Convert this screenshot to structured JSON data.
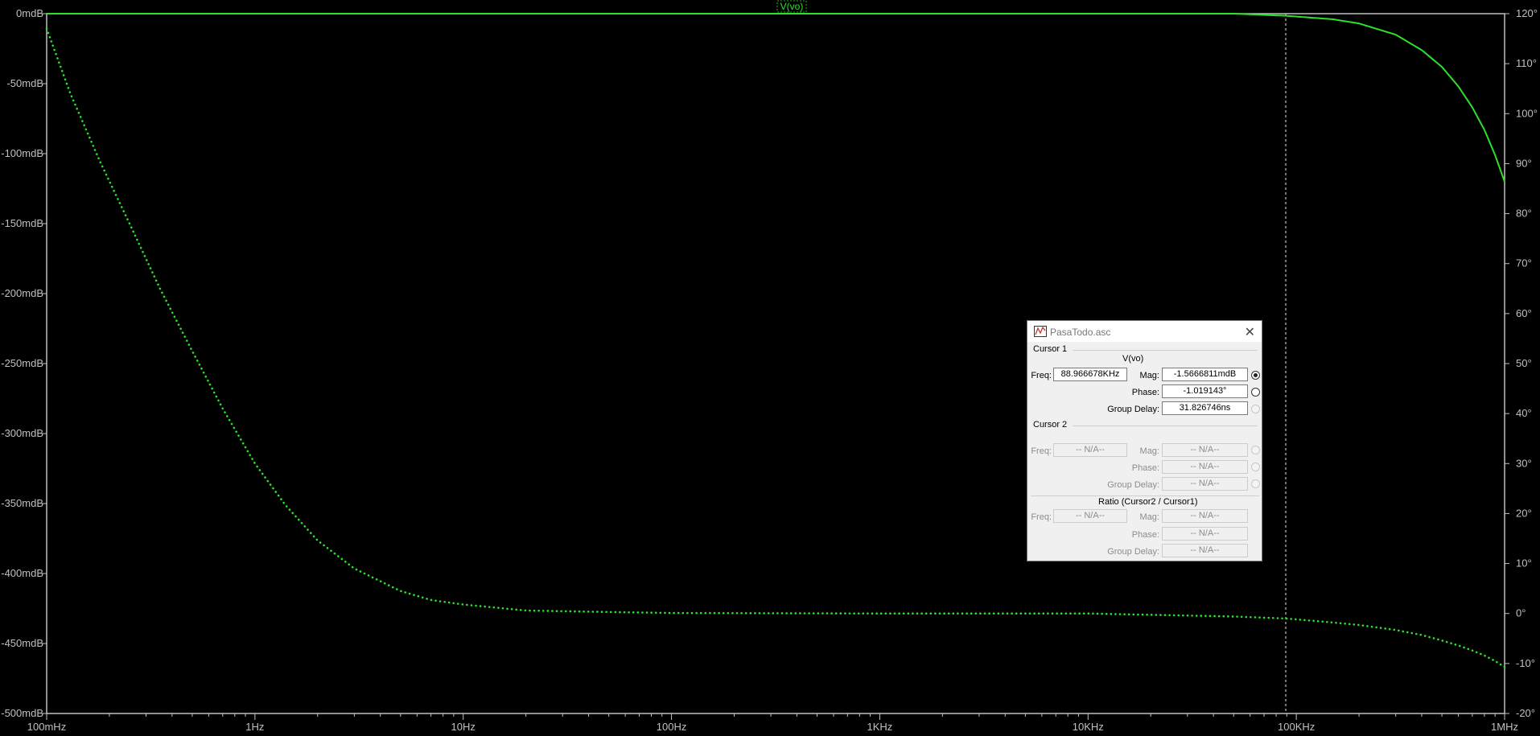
{
  "chart_data": {
    "type": "line",
    "trace_label": "V(vo)",
    "x_scale": "log",
    "x_range": [
      0.1,
      1000000
    ],
    "x_ticks": [
      {
        "value": 0.1,
        "label": "100mHz"
      },
      {
        "value": 1,
        "label": "1Hz"
      },
      {
        "value": 10,
        "label": "10Hz"
      },
      {
        "value": 100,
        "label": "100Hz"
      },
      {
        "value": 1000,
        "label": "1KHz"
      },
      {
        "value": 10000,
        "label": "10KHz"
      },
      {
        "value": 100000,
        "label": "100KHz"
      },
      {
        "value": 1000000,
        "label": "1MHz"
      }
    ],
    "y_left_range_mdB": [
      -500,
      0
    ],
    "y_left_ticks": [
      {
        "value": 0,
        "label": "0mdB"
      },
      {
        "value": -50,
        "label": "-50mdB"
      },
      {
        "value": -100,
        "label": "-100mdB"
      },
      {
        "value": -150,
        "label": "-150mdB"
      },
      {
        "value": -200,
        "label": "-200mdB"
      },
      {
        "value": -250,
        "label": "-250mdB"
      },
      {
        "value": -300,
        "label": "-300mdB"
      },
      {
        "value": -350,
        "label": "-350mdB"
      },
      {
        "value": -400,
        "label": "-400mdB"
      },
      {
        "value": -450,
        "label": "-450mdB"
      },
      {
        "value": -500,
        "label": "-500mdB"
      }
    ],
    "y_right_range_deg": [
      -20,
      120
    ],
    "y_right_ticks": [
      {
        "value": 120,
        "label": "120°"
      },
      {
        "value": 110,
        "label": "110°"
      },
      {
        "value": 100,
        "label": "100°"
      },
      {
        "value": 90,
        "label": "90°"
      },
      {
        "value": 80,
        "label": "80°"
      },
      {
        "value": 70,
        "label": "70°"
      },
      {
        "value": 60,
        "label": "60°"
      },
      {
        "value": 50,
        "label": "50°"
      },
      {
        "value": 40,
        "label": "40°"
      },
      {
        "value": 30,
        "label": "30°"
      },
      {
        "value": 20,
        "label": "20°"
      },
      {
        "value": 10,
        "label": "10°"
      },
      {
        "value": 0,
        "label": "0°"
      },
      {
        "value": -10,
        "label": "-10°"
      },
      {
        "value": -20,
        "label": "-20°"
      }
    ],
    "series": [
      {
        "kind": "magnitude",
        "axis": "left",
        "style": "solid",
        "color": "#2be12b",
        "unit": "mdB",
        "x": [
          0.1,
          1,
          10,
          100,
          1000,
          10000,
          50000,
          89000,
          150000,
          200000,
          300000,
          400000,
          500000,
          600000,
          700000,
          800000,
          900000,
          1000000
        ],
        "y": [
          0,
          0,
          0,
          0,
          0,
          0,
          0,
          -1.5,
          -4,
          -7,
          -15,
          -26,
          -38,
          -52,
          -67,
          -83,
          -101,
          -120
        ]
      },
      {
        "kind": "phase",
        "axis": "right",
        "style": "dotted",
        "color": "#2be12b",
        "unit": "deg",
        "x": [
          0.1,
          0.13,
          0.18,
          0.25,
          0.35,
          0.5,
          0.7,
          1,
          1.4,
          2,
          3,
          5,
          7,
          10,
          20,
          50,
          100,
          1000,
          10000,
          50000,
          89000,
          150000,
          200000,
          300000,
          400000,
          500000,
          600000,
          700000,
          800000,
          900000,
          1000000
        ],
        "y": [
          117,
          104,
          90.5,
          78,
          65,
          52.5,
          41,
          30,
          21.7,
          14.6,
          9,
          4.5,
          2.7,
          1.8,
          0.6,
          0.3,
          0.1,
          0,
          0,
          -0.6,
          -1,
          -1.8,
          -2.3,
          -3.3,
          -4.3,
          -5.4,
          -6.4,
          -7.4,
          -8.4,
          -9.5,
          -10.7
        ]
      }
    ],
    "cursor1_x": 88966.678
  },
  "dialog": {
    "title": "PasaTodo.asc",
    "cursor1": {
      "group_label": "Cursor 1",
      "trace": "V(vo)",
      "freq_label": "Freq:",
      "freq_value": "88.966678KHz",
      "mag_label": "Mag:",
      "mag_value": "-1.5666811mdB",
      "phase_label": "Phase:",
      "phase_value": "-1.019143°",
      "gd_label": "Group Delay:",
      "gd_value": "31.826746ns"
    },
    "cursor2": {
      "group_label": "Cursor 2",
      "freq_label": "Freq:",
      "freq_value": "-- N/A--",
      "mag_label": "Mag:",
      "mag_value": "-- N/A--",
      "phase_label": "Phase:",
      "phase_value": "-- N/A--",
      "gd_label": "Group Delay:",
      "gd_value": "-- N/A--"
    },
    "ratio": {
      "group_label": "Ratio (Cursor2 / Cursor1)",
      "freq_label": "Freq:",
      "freq_value": "-- N/A--",
      "mag_label": "Mag:",
      "mag_value": "-- N/A--",
      "phase_label": "Phase:",
      "phase_value": "-- N/A--",
      "gd_label": "Group Delay:",
      "gd_value": "-- N/A--"
    }
  }
}
